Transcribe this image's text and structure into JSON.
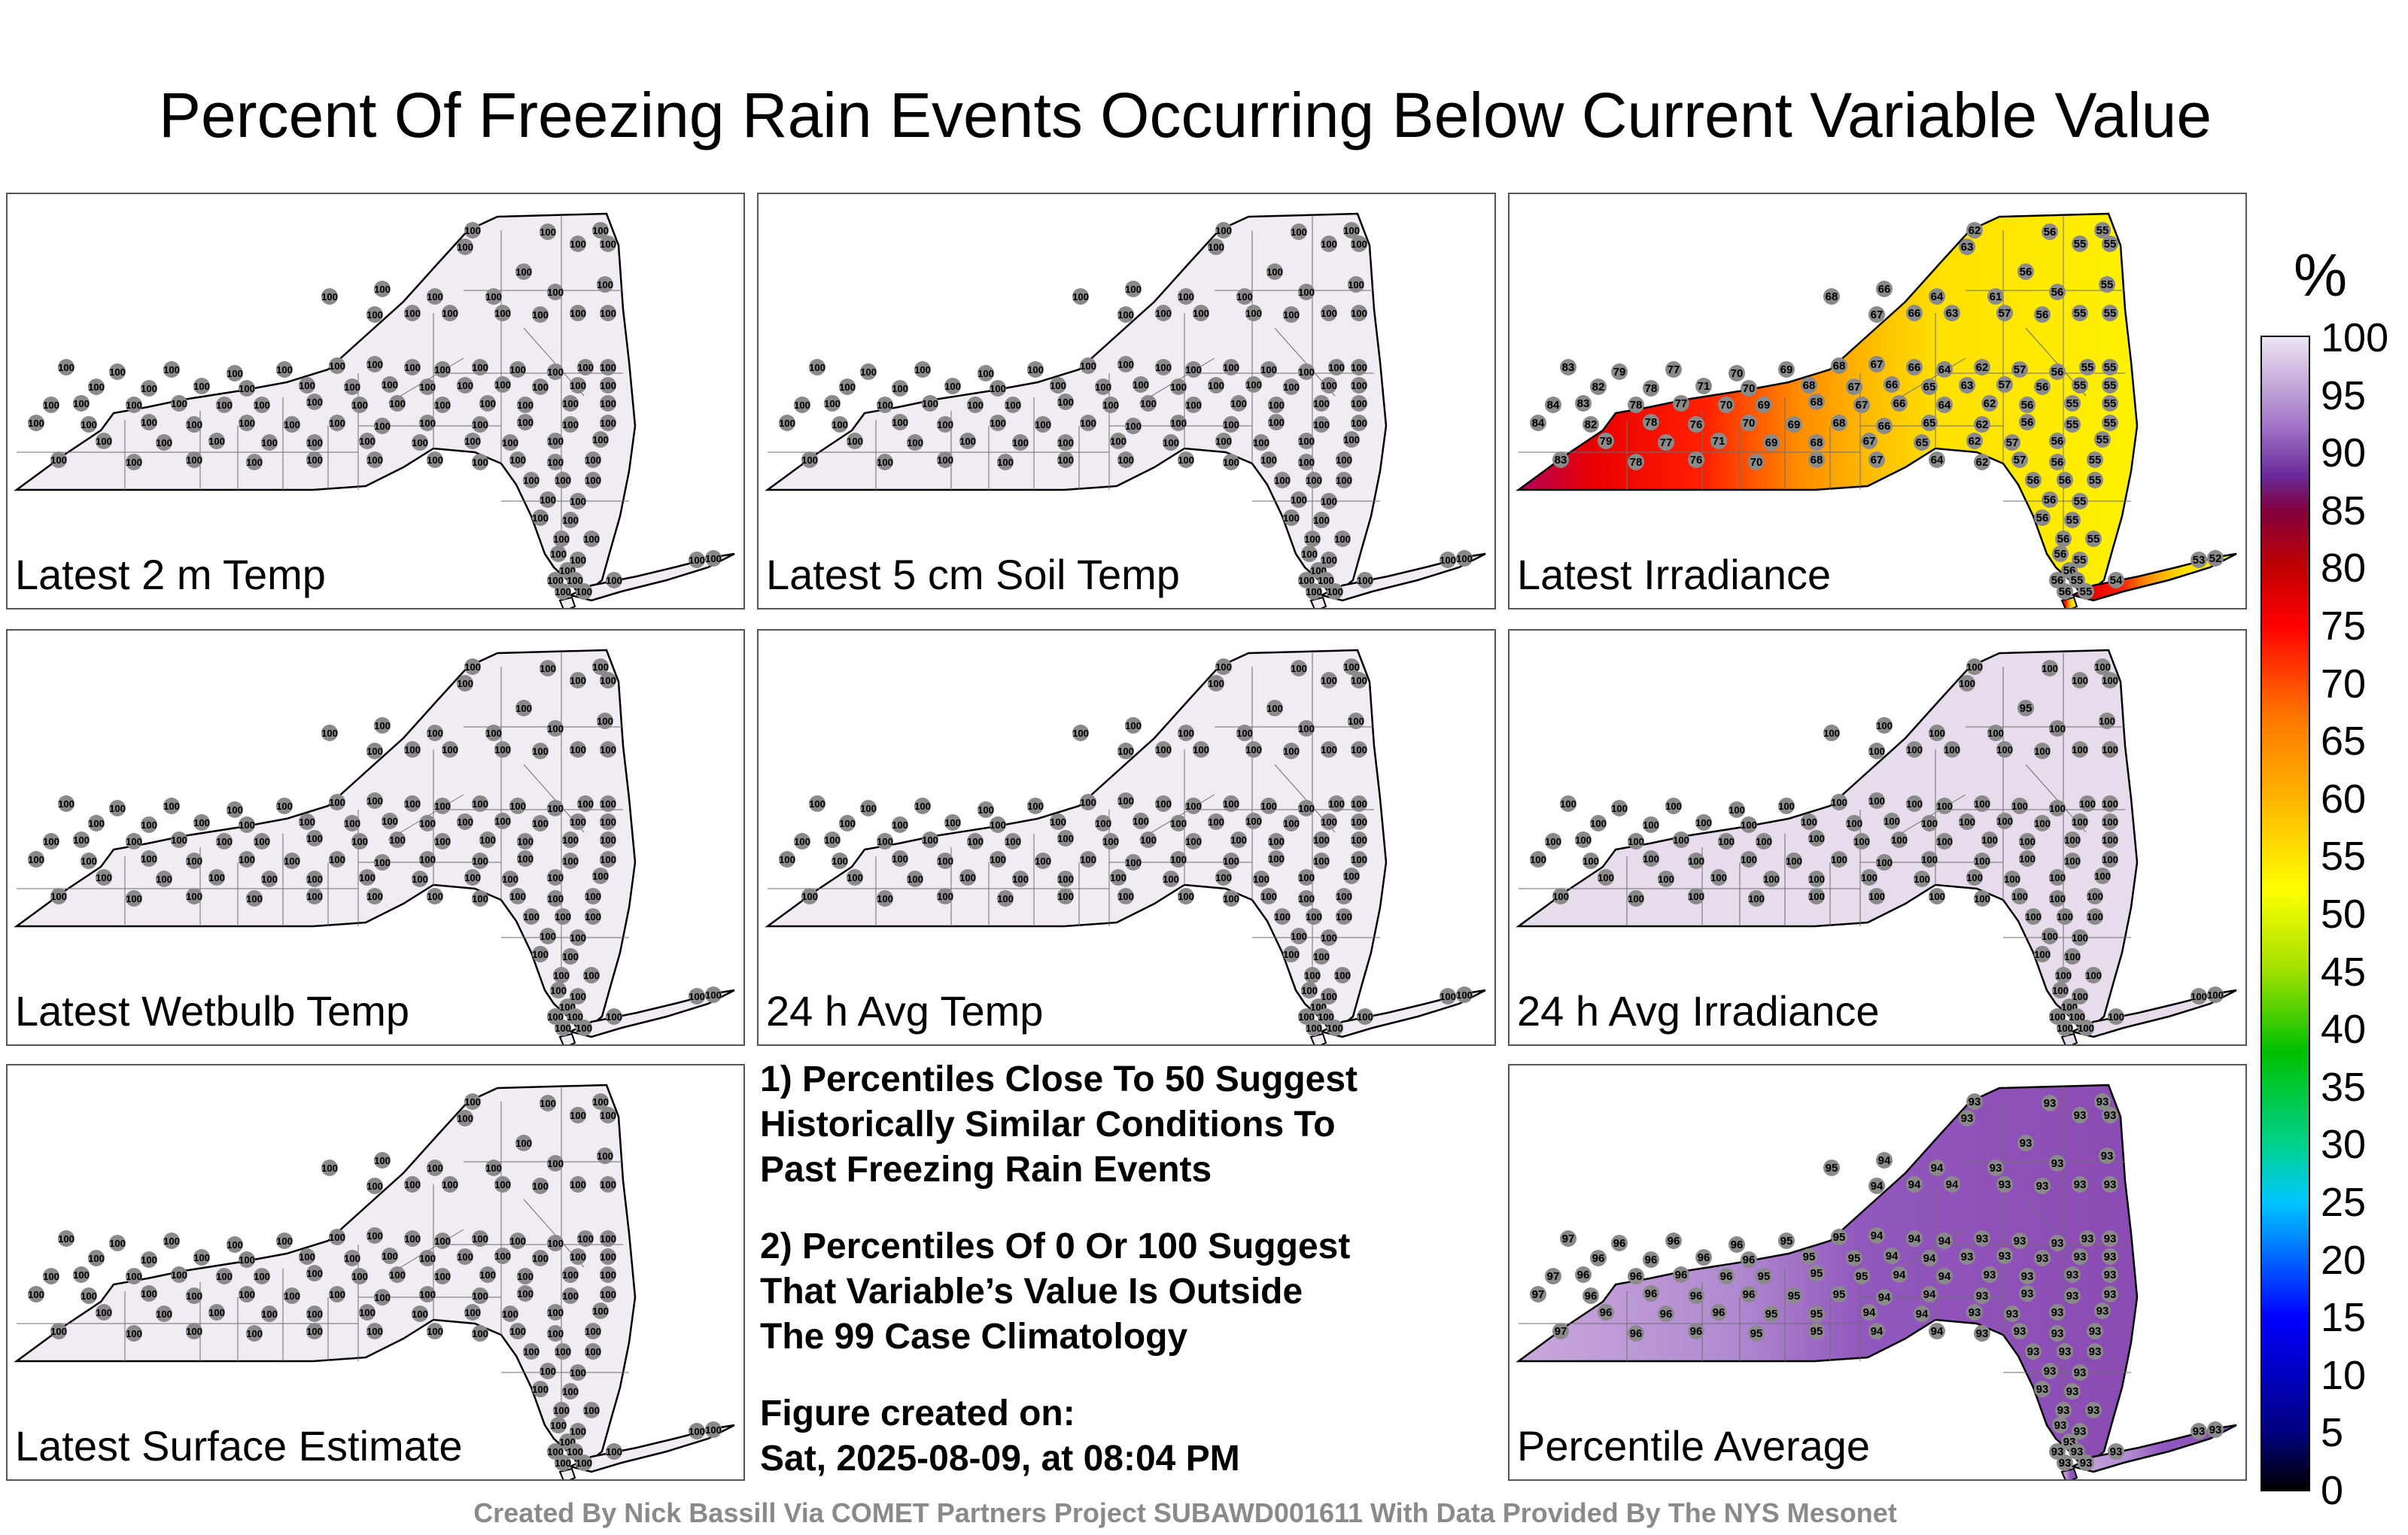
{
  "title": "Percent Of Freezing Rain Events Occurring Below Current Variable Value",
  "panels": [
    {
      "label": "Latest 2 m Temp",
      "mode": "uniform",
      "fill": "#f1ecf4",
      "value": "100"
    },
    {
      "label": "Latest 5 cm Soil Temp",
      "mode": "uniform",
      "fill": "#f1ecf4",
      "value": "100"
    },
    {
      "label": "Latest Irradiance",
      "mode": "gradient",
      "west_value": "86",
      "mid_value": "68",
      "east_value": "54"
    },
    {
      "label": "Latest Wetbulb Temp",
      "mode": "uniform",
      "fill": "#f1ecf4",
      "value": "100"
    },
    {
      "label": "24 h Avg Temp",
      "mode": "uniform",
      "fill": "#f1ecf4",
      "value": "100"
    },
    {
      "label": "24 h Avg Irradiance",
      "mode": "uniform",
      "fill": "#e6dceb",
      "value": "100",
      "special_value": "95"
    },
    {
      "label": "Latest Surface Estimate",
      "mode": "uniform",
      "fill": "#f1ecf4",
      "value": "100"
    },
    {
      "label": "Percentile Average",
      "mode": "average",
      "fill": "#8a4bb3",
      "west_fill": "#c9a8db",
      "value": "93",
      "west_value": "96"
    }
  ],
  "notes": {
    "line1": "1) Percentiles Close To 50 Suggest",
    "line2": "Historically Similar Conditions To",
    "line3": "Past Freezing Rain Events",
    "line4": "2) Percentiles Of 0 Or 100 Suggest",
    "line5": "That Variable’s Value Is Outside",
    "line6": "The 99 Case Climatology",
    "line7": "Figure created on:",
    "line8": "Sat, 2025-08-09, at 08:04 PM"
  },
  "credit": "Created By Nick Bassill Via COMET Partners Project SUBAWD001611 With Data Provided By The NYS Mesonet",
  "colorbar": {
    "unit": "%",
    "ticks": [
      "100",
      "95",
      "90",
      "85",
      "80",
      "75",
      "70",
      "65",
      "60",
      "55",
      "50",
      "45",
      "40",
      "35",
      "30",
      "25",
      "20",
      "15",
      "10",
      "5",
      "0"
    ]
  }
}
